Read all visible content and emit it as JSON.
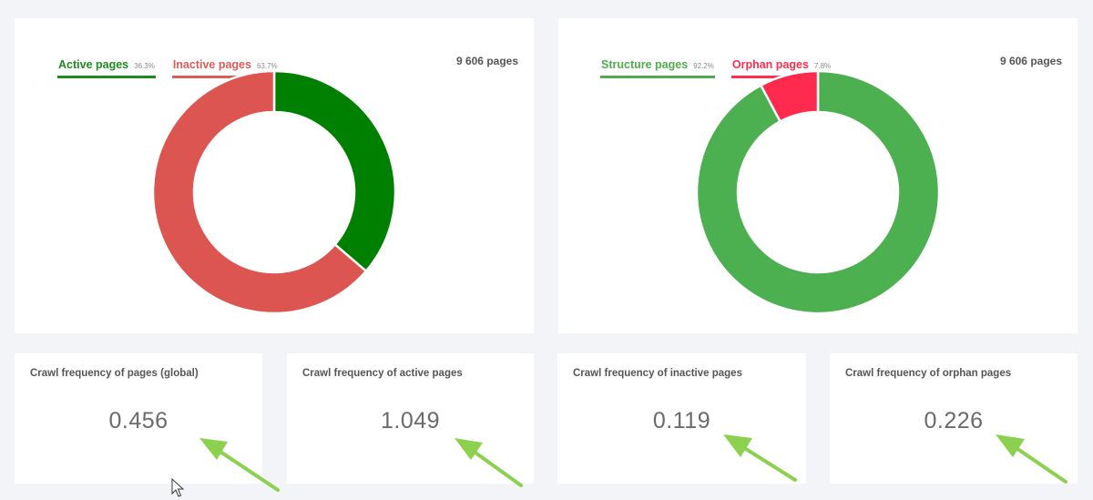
{
  "charts": [
    {
      "total_label": "9 606 pages",
      "legend": [
        {
          "label": "Active pages",
          "pct": "36.3%",
          "color": "#1e8a1e",
          "line_color": "#1e8a1e"
        },
        {
          "label": "Inactive pages",
          "pct": "63.7%",
          "color": "#e05a57",
          "line_color": "#e05a57"
        }
      ]
    },
    {
      "total_label": "9 606 pages",
      "legend": [
        {
          "label": "Structure pages",
          "pct": "92.2%",
          "color": "#4fad4f",
          "line_color": "#4fad4f"
        },
        {
          "label": "Orphan pages",
          "pct": "7.8%",
          "color": "#ff2d4f",
          "line_color": "#ff2d4f"
        }
      ]
    }
  ],
  "chart_data": [
    {
      "type": "pie",
      "categories": [
        "Active pages",
        "Inactive pages"
      ],
      "values": [
        36.3,
        63.7
      ],
      "colors": [
        "#008000",
        "#dc5550"
      ],
      "unit": "%"
    },
    {
      "type": "pie",
      "categories": [
        "Structure pages",
        "Orphan pages"
      ],
      "values": [
        92.2,
        7.8
      ],
      "colors": [
        "#4caf50",
        "#ff2a4e"
      ],
      "unit": "%"
    }
  ],
  "metrics": [
    {
      "title": "Crawl frequency of pages (global)",
      "value": "0.456"
    },
    {
      "title": "Crawl frequency of active pages",
      "value": "1.049"
    },
    {
      "title": "Crawl frequency of inactive pages",
      "value": "0.119"
    },
    {
      "title": "Crawl frequency of orphan pages",
      "value": "0.226"
    }
  ],
  "annotation_color": "#8bd14f"
}
